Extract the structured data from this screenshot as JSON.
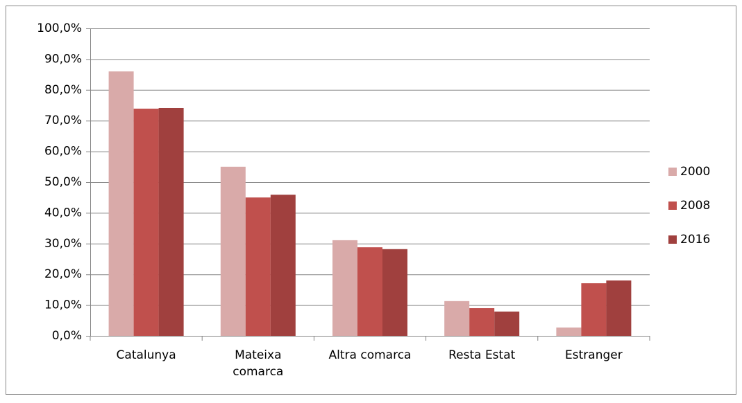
{
  "chart_data": {
    "type": "bar",
    "categories": [
      "Catalunya",
      "Mateixa comarca",
      "Altra comarca",
      "Resta Estat",
      "Estranger"
    ],
    "series": [
      {
        "name": "2000",
        "color": "#d9aaa9",
        "values": [
          86.0,
          55.0,
          31.1,
          11.3,
          2.7
        ]
      },
      {
        "name": "2008",
        "color": "#c0504d",
        "values": [
          73.9,
          45.0,
          28.8,
          9.0,
          17.1
        ]
      },
      {
        "name": "2016",
        "color": "#a0403e",
        "values": [
          74.1,
          45.9,
          28.2,
          7.9,
          18.0
        ]
      }
    ],
    "ylim": [
      0,
      100
    ],
    "yticks": [
      {
        "value": 0,
        "label": "0,0%"
      },
      {
        "value": 10,
        "label": "10,0%"
      },
      {
        "value": 20,
        "label": "20,0%"
      },
      {
        "value": 30,
        "label": "30,0%"
      },
      {
        "value": 40,
        "label": "40,0%"
      },
      {
        "value": 50,
        "label": "50,0%"
      },
      {
        "value": 60,
        "label": "60,0%"
      },
      {
        "value": 70,
        "label": "70,0%"
      },
      {
        "value": 80,
        "label": "80,0%"
      },
      {
        "value": 90,
        "label": "90,0%"
      },
      {
        "value": 100,
        "label": "100,0%"
      }
    ],
    "grid": true,
    "legend": "right"
  }
}
